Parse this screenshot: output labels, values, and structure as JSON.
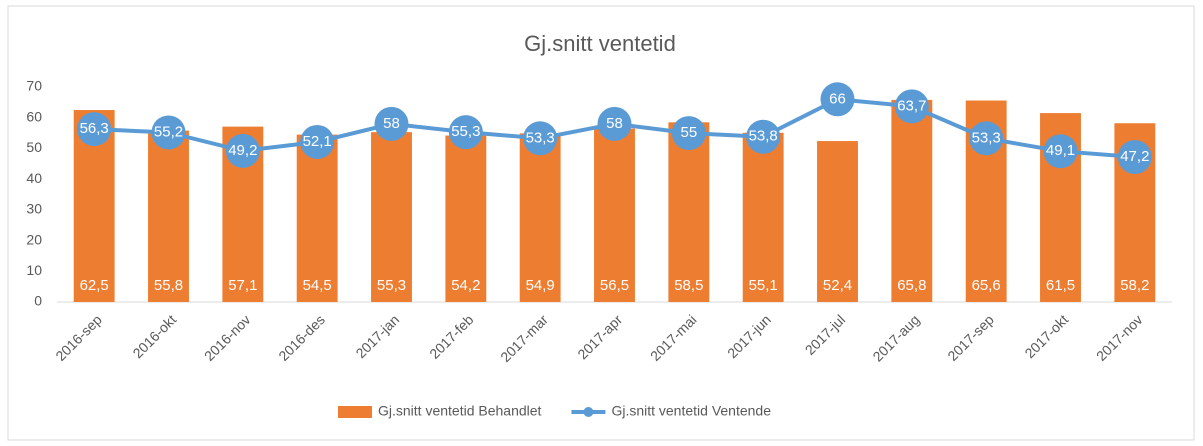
{
  "chart_data": {
    "type": "bar",
    "title": "Gj.snitt ventetid",
    "categories": [
      "2016-sep",
      "2016-okt",
      "2016-nov",
      "2016-des",
      "2017-jan",
      "2017-feb",
      "2017-mar",
      "2017-apr",
      "2017-mai",
      "2017-jun",
      "2017-jul",
      "2017-aug",
      "2017-sep",
      "2017-okt",
      "2017-nov"
    ],
    "series": [
      {
        "name": "Gj.snitt ventetid Behandlet",
        "type": "bar",
        "color": "#ed7d31",
        "values": [
          62.5,
          55.8,
          57.1,
          54.5,
          55.3,
          54.2,
          54.9,
          56.5,
          58.5,
          55.1,
          52.4,
          65.8,
          65.6,
          61.5,
          58.2
        ],
        "value_labels": [
          "62,5",
          "55,8",
          "57,1",
          "54,5",
          "55,3",
          "54,2",
          "54,9",
          "56,5",
          "58,5",
          "55,1",
          "52,4",
          "65,8",
          "65,6",
          "61,5",
          "58,2"
        ]
      },
      {
        "name": "Gj.snitt ventetid Ventende",
        "type": "line",
        "color": "#5b9bd5",
        "values": [
          56.3,
          55.2,
          49.2,
          52.1,
          58,
          55.3,
          53.3,
          58,
          55,
          53.8,
          66,
          63.7,
          53.3,
          49.1,
          47.2
        ],
        "value_labels": [
          "56,3",
          "55,2",
          "49,2",
          "52,1",
          "58",
          "55,3",
          "53,3",
          "58",
          "55",
          "53,8",
          "66",
          "63,7",
          "53,3",
          "49,1",
          "47,2"
        ]
      }
    ],
    "ylim": [
      0,
      70
    ],
    "yticks": [
      0,
      10,
      20,
      30,
      40,
      50,
      60,
      70
    ],
    "grid": false,
    "legend": "bottom"
  }
}
